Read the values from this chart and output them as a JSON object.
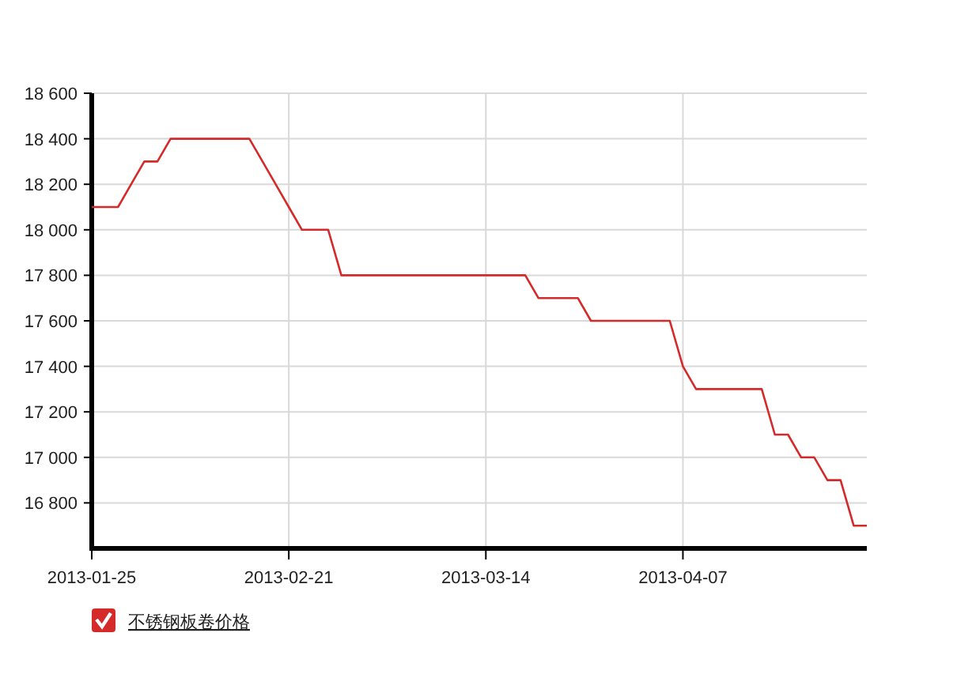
{
  "chart_data": {
    "type": "line",
    "categories": [
      "2013-01-25",
      null,
      null,
      null,
      null,
      null,
      null,
      null,
      null,
      null,
      null,
      null,
      null,
      null,
      null,
      "2013-02-21",
      null,
      null,
      null,
      null,
      null,
      null,
      null,
      null,
      null,
      null,
      null,
      null,
      null,
      null,
      "2013-03-14",
      null,
      null,
      null,
      null,
      null,
      null,
      null,
      null,
      null,
      null,
      null,
      null,
      null,
      null,
      "2013-04-07",
      null,
      null,
      null,
      null,
      null,
      null,
      null,
      null,
      null,
      null,
      null,
      null,
      null,
      null
    ],
    "series": [
      {
        "name": "不锈钢板卷价格",
        "color": "#d42a2a",
        "values": [
          18100,
          18100,
          18100,
          18200,
          18300,
          18300,
          18400,
          18400,
          18400,
          18400,
          18400,
          18400,
          18400,
          18300,
          18200,
          18100,
          18000,
          18000,
          18000,
          17800,
          17800,
          17800,
          17800,
          17800,
          17800,
          17800,
          17800,
          17800,
          17800,
          17800,
          17800,
          17800,
          17800,
          17800,
          17700,
          17700,
          17700,
          17700,
          17600,
          17600,
          17600,
          17600,
          17600,
          17600,
          17600,
          17400,
          17300,
          17300,
          17300,
          17300,
          17300,
          17300,
          17100,
          17100,
          17000,
          17000,
          16900,
          16900,
          16700,
          16700
        ]
      }
    ],
    "ylim": [
      16600,
      18600
    ],
    "yticks": [
      {
        "value": 16800,
        "label": "16 800"
      },
      {
        "value": 17000,
        "label": "17 000"
      },
      {
        "value": 17200,
        "label": "17 200"
      },
      {
        "value": 17400,
        "label": "17 400"
      },
      {
        "value": 17600,
        "label": "17 600"
      },
      {
        "value": 17800,
        "label": "17 800"
      },
      {
        "value": 18000,
        "label": "18 000"
      },
      {
        "value": 18200,
        "label": "18 200"
      },
      {
        "value": 18400,
        "label": "18 400"
      },
      {
        "value": 18600,
        "label": "18 600"
      }
    ],
    "grid": true,
    "legend": "bottom left"
  }
}
